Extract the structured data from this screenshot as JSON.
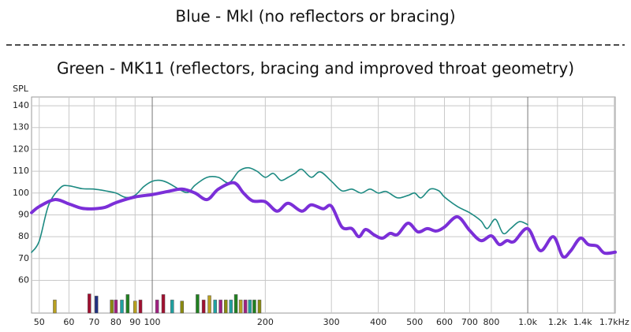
{
  "chart_data": {
    "type": "line",
    "title": "Blue - MkI (no reflectors or bracing)",
    "subtitle": "Green - MK11 (reflectors, bracing and improved throat geometry)",
    "y_label": "SPL",
    "xscale": "log",
    "grid": true,
    "xlim": [
      47.7,
      1710
    ],
    "ylim": [
      45,
      144
    ],
    "yticks": [
      60,
      70,
      80,
      90,
      100,
      110,
      120,
      130,
      140
    ],
    "xticks": [
      50,
      60,
      70,
      80,
      90,
      100,
      200,
      300,
      400,
      500,
      600,
      700,
      800,
      {
        "value": 1000,
        "label": "1.0k"
      },
      {
        "value": 1200,
        "label": "1.2k"
      },
      {
        "value": 1400,
        "label": "1.4k"
      },
      {
        "value": 1700,
        "label": "1.7kHz"
      }
    ],
    "major_xticks": [
      100,
      1000
    ],
    "series": [
      {
        "color": "#1d8a82",
        "width": 1.6,
        "x": [
          47.7,
          50,
          53,
          57,
          60,
          65,
          70,
          75,
          80,
          85,
          90,
          95,
          100,
          105,
          110,
          120,
          125,
          130,
          140,
          150,
          160,
          170,
          180,
          190,
          200,
          210,
          220,
          230,
          240,
          250,
          265,
          280,
          300,
          320,
          340,
          360,
          380,
          400,
          420,
          450,
          480,
          500,
          520,
          550,
          580,
          600,
          650,
          700,
          750,
          780,
          820,
          860,
          900,
          950,
          1000
        ],
        "values": [
          72.8,
          78,
          94.6,
          102.5,
          103.3,
          102,
          101.8,
          101,
          100,
          98,
          99,
          103,
          105.4,
          105.8,
          104.7,
          101,
          100.4,
          103.6,
          107.2,
          107.2,
          104.7,
          110,
          111.6,
          110,
          107.2,
          109,
          105.8,
          107.2,
          109,
          110.9,
          107.2,
          109.7,
          105.4,
          101,
          101.8,
          100,
          101.8,
          100,
          100.7,
          97.8,
          98.9,
          100,
          97.8,
          101.8,
          101,
          98.2,
          93.8,
          91,
          87.3,
          83.7,
          88,
          81.5,
          83.7,
          86.9,
          85.5
        ]
      },
      {
        "color": "#7b2fd8",
        "width": 4,
        "x": [
          47.7,
          50,
          55,
          60,
          65,
          70,
          75,
          80,
          90,
          100,
          110,
          120,
          130,
          140,
          150,
          165,
          175,
          185,
          200,
          215,
          230,
          250,
          265,
          285,
          300,
          320,
          340,
          355,
          370,
          390,
          410,
          430,
          450,
          480,
          510,
          540,
          570,
          600,
          650,
          700,
          750,
          800,
          840,
          880,
          920,
          1000,
          1080,
          1170,
          1240,
          1300,
          1380,
          1450,
          1530,
          1600,
          1710
        ],
        "values": [
          91,
          93.8,
          97,
          95,
          93,
          92.8,
          93.5,
          95.6,
          98.2,
          99.3,
          100.7,
          101.8,
          100,
          97,
          101.8,
          104.7,
          100,
          96.4,
          96,
          91.7,
          95.3,
          91.7,
          94.6,
          92.8,
          94,
          84.4,
          83.7,
          80,
          83.3,
          80.8,
          79.3,
          81.5,
          81,
          86.2,
          82.2,
          83.7,
          82.6,
          84.4,
          89.1,
          82.9,
          78.2,
          80.4,
          76.4,
          78.2,
          77.8,
          83.7,
          73.6,
          80,
          70.9,
          73.4,
          79.3,
          76.4,
          75.7,
          72.5,
          72.9
        ]
      }
    ],
    "markers": {
      "x": [
        55,
        68,
        71,
        78,
        80,
        83,
        86,
        90,
        93,
        103,
        107,
        113,
        120,
        132,
        137,
        142,
        147,
        152,
        157,
        162,
        167,
        172,
        177,
        182,
        187,
        193
      ],
      "values": [
        51,
        53.8,
        52.8,
        51,
        51,
        51,
        53.5,
        50.5,
        51,
        51,
        53.5,
        51,
        50.5,
        53.5,
        51,
        53,
        51,
        51,
        51,
        51,
        53.5,
        51,
        51,
        51,
        51,
        51
      ],
      "colors": [
        "#b8a020",
        "#a01030",
        "#203080",
        "#8a8a10",
        "#a02080",
        "#20a0a0",
        "#208020",
        "#b8a020",
        "#a01030",
        "#a02080",
        "#a01030",
        "#20a0a0",
        "#8a8a10",
        "#208020",
        "#a01030",
        "#b8a020",
        "#20a0a0",
        "#a02080",
        "#8a8a10",
        "#20a0a0",
        "#208020",
        "#b8a020",
        "#a02080",
        "#20a0a0",
        "#208020",
        "#8a8a10"
      ]
    }
  }
}
